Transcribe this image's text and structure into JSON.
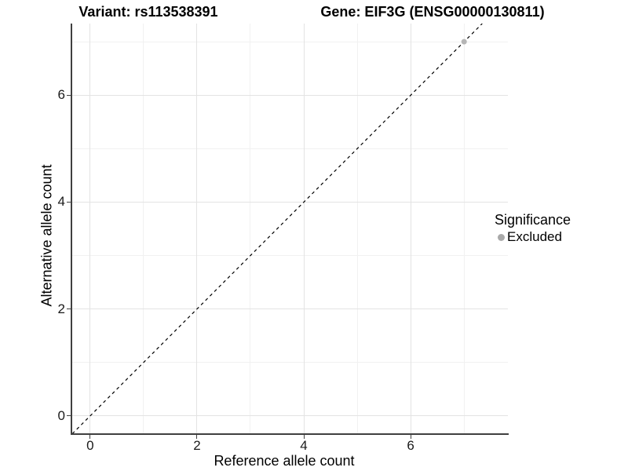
{
  "header": {
    "title_left": "Variant: rs113538391",
    "title_right": "Gene: EIF3G (ENSG00000130811)"
  },
  "chart_data": {
    "type": "scatter",
    "xlabel": "Reference allele count",
    "ylabel": "Alternative allele count",
    "xlim": [
      -0.35,
      7.82
    ],
    "ylim": [
      -0.34,
      7.34
    ],
    "x_major_ticks": [
      0,
      2,
      4,
      6
    ],
    "x_minor_ticks": [
      1,
      3,
      5,
      7
    ],
    "y_major_ticks": [
      0,
      2,
      4,
      6
    ],
    "y_minor_ticks": [
      1,
      3,
      5,
      7
    ],
    "grid": true,
    "identity_line": {
      "style": "dashed",
      "from": [
        -0.5,
        -0.5
      ],
      "to": [
        7.34,
        7.34
      ],
      "color": "#000000"
    },
    "series": [
      {
        "name": "Excluded",
        "color": "#b5b5b5",
        "points": [
          [
            7,
            7
          ]
        ]
      }
    ],
    "legend": {
      "title": "Significance",
      "position": "right",
      "entries": [
        {
          "label": "Excluded",
          "color": "#a9a9a9"
        }
      ]
    }
  },
  "colors": {
    "grid_major": "#e3e3e3",
    "grid_minor": "#f1f1f1",
    "axis_line": "#404040",
    "background": "#ffffff"
  }
}
